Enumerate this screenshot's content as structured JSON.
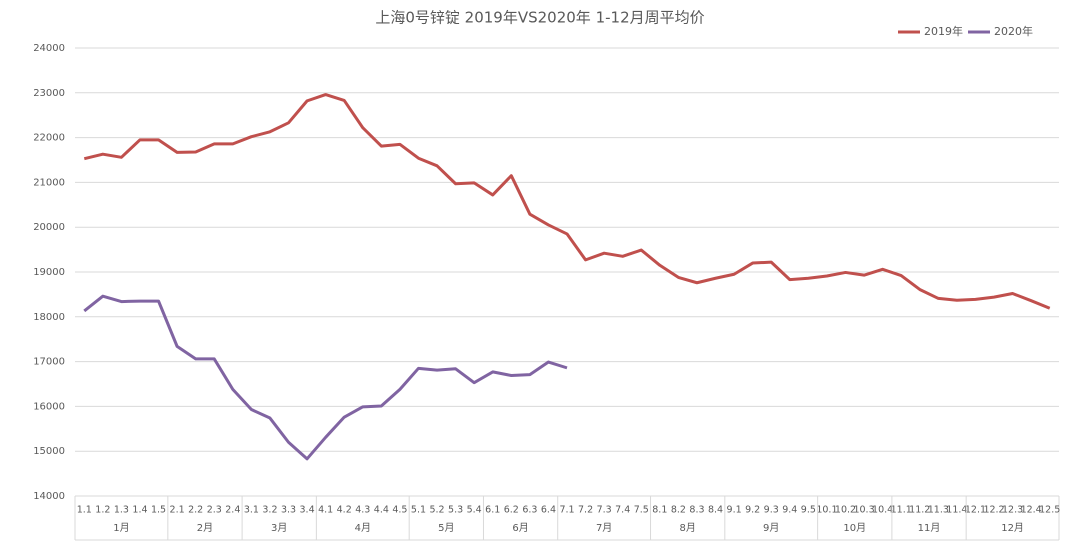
{
  "chart_data": {
    "type": "line",
    "title": "上海0号锌锭  2019年VS2020年  1-12月周平均价",
    "categories": [
      "1.1",
      "1.2",
      "1.3",
      "1.4",
      "1.5",
      "2.1",
      "2.2",
      "2.3",
      "2.4",
      "3.1",
      "3.2",
      "3.3",
      "3.4",
      "4.1",
      "4.2",
      "4.3",
      "4.4",
      "4.5",
      "5.1",
      "5.2",
      "5.3",
      "5.4",
      "6.1",
      "6.2",
      "6.3",
      "6.4",
      "7.1",
      "7.2",
      "7.3",
      "7.4",
      "7.5",
      "8.1",
      "8.2",
      "8.3",
      "8.4",
      "9.1",
      "9.2",
      "9.3",
      "9.4",
      "9.5",
      "10.1",
      "10.2",
      "10.3",
      "10.4",
      "11.1",
      "11.2",
      "11.3",
      "11.4",
      "12.1",
      "12.2",
      "12.3",
      "12.4",
      "12.5"
    ],
    "groups": [
      "1月",
      "2月",
      "3月",
      "4月",
      "5月",
      "6月",
      "7月",
      "8月",
      "9月",
      "10月",
      "11月",
      "12月"
    ],
    "series": [
      {
        "name": "2019年",
        "color": "#c0504d",
        "values": [
          21530,
          21630,
          21560,
          21950,
          21950,
          21670,
          21680,
          21860,
          21860,
          22020,
          22130,
          22330,
          22820,
          22960,
          22830,
          22220,
          21810,
          21850,
          21540,
          21370,
          20970,
          20990,
          20720,
          21150,
          20290,
          20050,
          19850,
          19270,
          19420,
          19350,
          19490,
          19150,
          18880,
          18760,
          18860,
          18950,
          19200,
          19220,
          18830,
          18860,
          18910,
          18990,
          18930,
          19060,
          18920,
          18610,
          18410,
          18370,
          18390,
          18440,
          18520,
          18360,
          18190
        ]
      },
      {
        "name": "2020年",
        "color": "#8064a2",
        "values": [
          18130,
          18460,
          18340,
          18350,
          18350,
          17340,
          17060,
          17060,
          16380,
          15930,
          15740,
          15200,
          14830,
          15310,
          15760,
          15990,
          16010,
          16380,
          16850,
          16810,
          16840,
          16530,
          16770,
          16690,
          16710,
          16990,
          16860,
          null,
          null,
          null,
          null,
          null,
          null,
          null,
          null,
          null,
          null,
          null,
          null,
          null,
          null,
          null,
          null,
          null,
          null,
          null,
          null,
          null,
          null,
          null,
          null,
          null,
          null
        ]
      }
    ],
    "ylim": [
      14000,
      24000
    ],
    "yticks": [
      14000,
      15000,
      16000,
      17000,
      18000,
      19000,
      20000,
      21000,
      22000,
      23000,
      24000
    ],
    "grid": true,
    "legend": "top-right"
  }
}
